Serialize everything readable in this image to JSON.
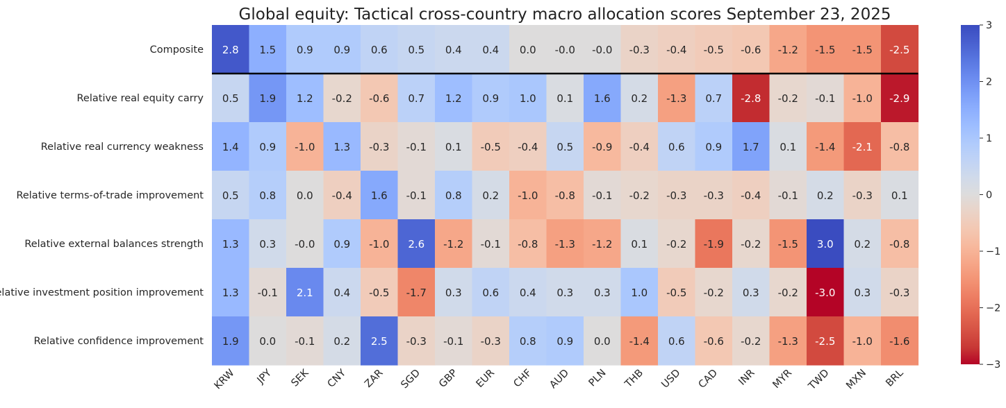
{
  "chart_data": {
    "type": "heatmap",
    "title": "Global equity: Tactical cross-country macro allocation scores September 23, 2025",
    "columns": [
      "KRW",
      "JPY",
      "SEK",
      "CNY",
      "ZAR",
      "SGD",
      "GBP",
      "EUR",
      "CHF",
      "AUD",
      "PLN",
      "THB",
      "USD",
      "CAD",
      "INR",
      "MYR",
      "TWD",
      "MXN",
      "BRL"
    ],
    "rows": [
      "Composite",
      "Relative real equity carry",
      "Relative real currency weakness",
      "Relative terms-of-trade improvement",
      "Relative external balances strength",
      "Relative investment position improvement",
      "Relative confidence improvement"
    ],
    "values": [
      [
        2.8,
        1.5,
        0.9,
        0.9,
        0.6,
        0.5,
        0.4,
        0.4,
        0.0,
        -0.0,
        -0.0,
        -0.3,
        -0.4,
        -0.5,
        -0.6,
        -1.2,
        -1.5,
        -1.5,
        -2.5
      ],
      [
        0.5,
        1.9,
        1.2,
        -0.2,
        -0.6,
        0.7,
        1.2,
        0.9,
        1.0,
        0.1,
        1.6,
        0.2,
        -1.3,
        0.7,
        -2.8,
        -0.2,
        -0.1,
        -1.0,
        -2.9
      ],
      [
        1.4,
        0.9,
        -1.0,
        1.3,
        -0.3,
        -0.1,
        0.1,
        -0.5,
        -0.4,
        0.5,
        -0.9,
        -0.4,
        0.6,
        0.9,
        1.7,
        0.1,
        -1.4,
        -2.1,
        -0.8
      ],
      [
        0.5,
        0.8,
        0.0,
        -0.4,
        1.6,
        -0.1,
        0.8,
        0.2,
        -1.0,
        -0.8,
        -0.1,
        -0.2,
        -0.3,
        -0.3,
        -0.4,
        -0.1,
        0.2,
        -0.3,
        0.1
      ],
      [
        1.3,
        0.3,
        -0.0,
        0.9,
        -1.0,
        2.6,
        -1.2,
        -0.1,
        -0.8,
        -1.3,
        -1.2,
        0.1,
        -0.2,
        -1.9,
        -0.2,
        -1.5,
        3.0,
        0.2,
        -0.8
      ],
      [
        1.3,
        -0.1,
        2.1,
        0.4,
        -0.5,
        -1.7,
        0.3,
        0.6,
        0.4,
        0.3,
        0.3,
        1.0,
        -0.5,
        -0.2,
        0.3,
        -0.2,
        -3.0,
        0.3,
        -0.3
      ],
      [
        1.9,
        0.0,
        -0.1,
        0.2,
        2.5,
        -0.3,
        -0.1,
        -0.3,
        0.8,
        0.9,
        0.0,
        -1.4,
        0.6,
        -0.6,
        -0.2,
        -1.3,
        -2.5,
        -1.0,
        -1.6
      ]
    ],
    "colorbar": {
      "colormap": "coolwarm",
      "range": [
        -3,
        3
      ],
      "ticks": [
        "3",
        "2",
        "1",
        "0",
        "−1",
        "−2",
        "−3"
      ]
    },
    "separator_after_row": "Composite"
  }
}
